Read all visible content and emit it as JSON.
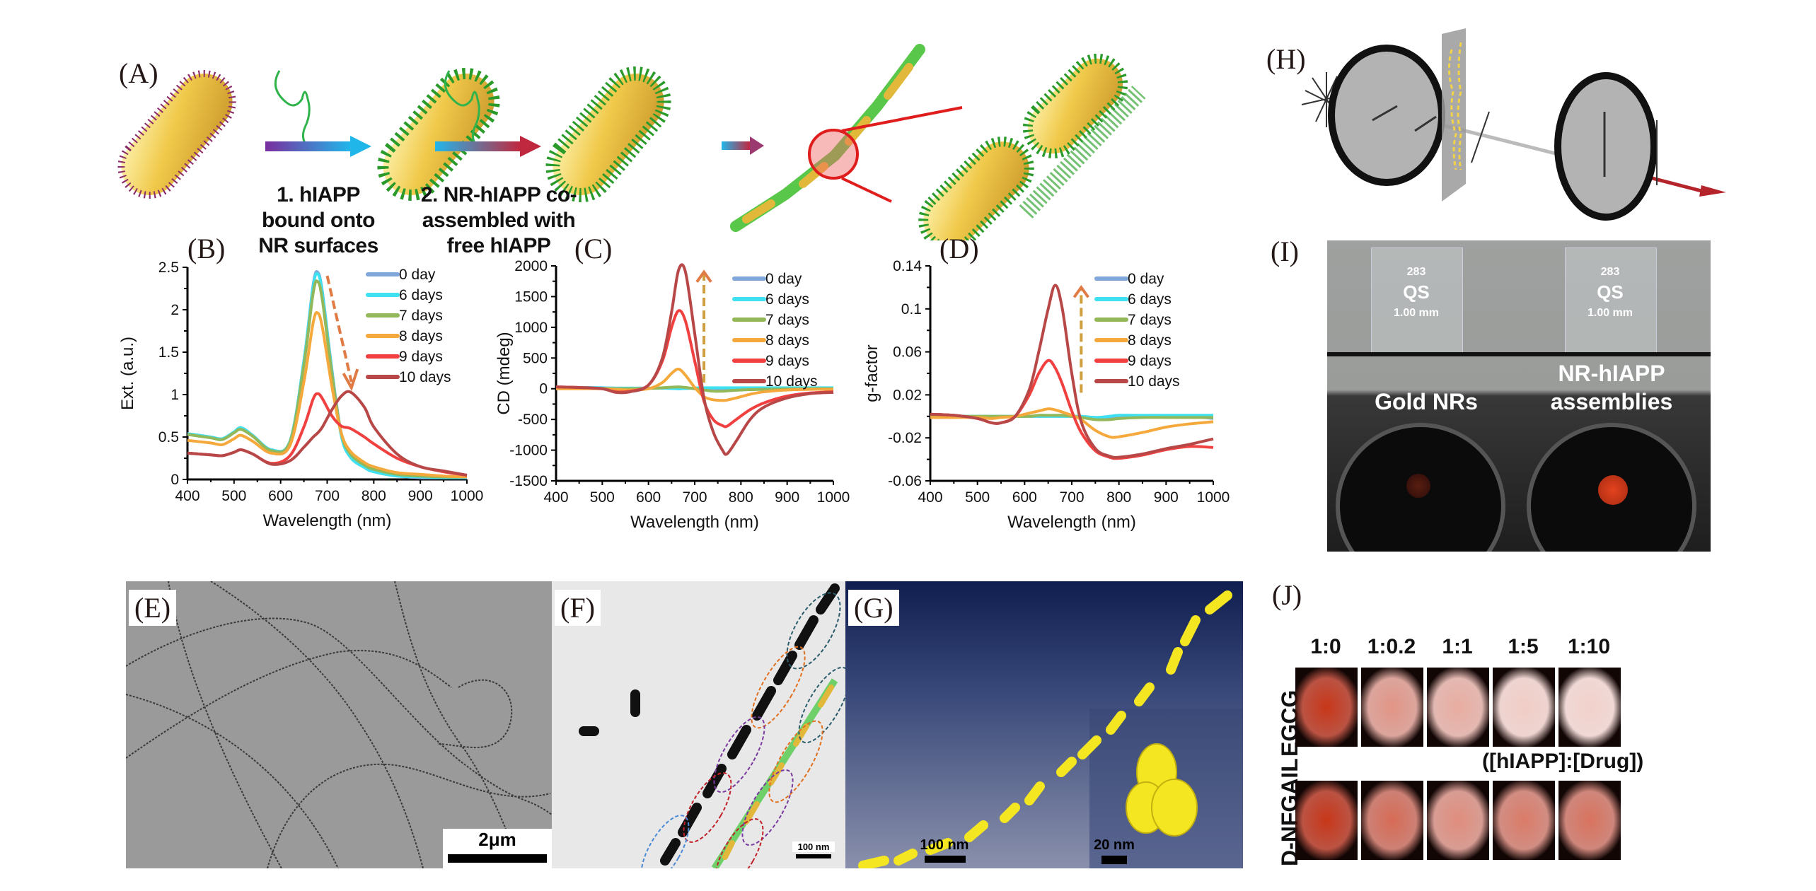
{
  "panels": {
    "A": {
      "label": "(A)",
      "step1": [
        "1. hIAPP",
        "bound onto",
        "NR surfaces"
      ],
      "step2": [
        "2. NR-hIAPP co-",
        "assembled with",
        "free hIAPP"
      ]
    },
    "B": {
      "label": "(B)"
    },
    "C": {
      "label": "(C)"
    },
    "D": {
      "label": "(D)"
    },
    "E": {
      "label": "(E)",
      "scale_bar": "2μm"
    },
    "F": {
      "label": "(F)",
      "scale_bar": "100 nm"
    },
    "G": {
      "label": "(G)",
      "scale_bar": "100 nm",
      "inset_scale_bar": "20 nm"
    },
    "H": {
      "label": "(H)"
    },
    "I": {
      "label": "(I)",
      "cuvette_text": {
        "number": "283",
        "brand": "QS",
        "path": "1.00 mm"
      },
      "left_caption": "Gold NRs",
      "right_caption": [
        "NR-hIAPP",
        "assemblies"
      ]
    },
    "J": {
      "label": "(J)",
      "columns": [
        "1:0",
        "1:0.2",
        "1:1",
        "1:5",
        "1:10"
      ],
      "rows": [
        "EGCG",
        "D-NFGAIL"
      ],
      "ratio_caption": "([hIAPP]:[Drug])",
      "intensity": {
        "EGCG": [
          1.0,
          0.45,
          0.3,
          0.12,
          0.1
        ],
        "D-NFGAIL": [
          1.0,
          0.7,
          0.5,
          0.6,
          0.65
        ]
      }
    }
  },
  "colors": {
    "0 day": "#7fa7d9",
    "6 days": "#3fe0f0",
    "7 days": "#93b85a",
    "8 days": "#f5a93c",
    "9 days": "#f0403f",
    "10 days": "#b84848"
  },
  "chart_data": [
    {
      "id": "B",
      "type": "line",
      "title": "",
      "xlabel": "Wavelength (nm)",
      "ylabel": "Ext. (a.u.)",
      "xlim": [
        400,
        1000
      ],
      "ylim": [
        0,
        2.5
      ],
      "xticks": [
        400,
        500,
        600,
        700,
        800,
        900,
        1000
      ],
      "yticks": [
        0,
        0.5,
        1,
        1.5,
        2,
        2.5
      ],
      "ytick_labels": [
        "0",
        "0.5",
        "1",
        "1.5",
        "2",
        "2.5"
      ],
      "legend": "top-right",
      "annotation": "dashed arrow pointing down-right (red-shift and decrease)",
      "x": [
        400,
        450,
        475,
        500,
        515,
        540,
        580,
        620,
        650,
        670,
        680,
        690,
        710,
        730,
        750,
        780,
        800,
        850,
        900,
        950,
        1000
      ],
      "series": [
        {
          "name": "0 day",
          "values": [
            0.54,
            0.5,
            0.48,
            0.56,
            0.61,
            0.52,
            0.35,
            0.45,
            1.4,
            2.3,
            2.44,
            2.2,
            1.3,
            0.55,
            0.28,
            0.15,
            0.1,
            0.04,
            0.02,
            0.02,
            0.02
          ]
        },
        {
          "name": "6 days",
          "values": [
            0.54,
            0.5,
            0.48,
            0.56,
            0.61,
            0.52,
            0.35,
            0.45,
            1.4,
            2.28,
            2.42,
            2.18,
            1.28,
            0.52,
            0.26,
            0.14,
            0.09,
            0.04,
            0.03,
            0.02,
            0.02
          ]
        },
        {
          "name": "7 days",
          "values": [
            0.53,
            0.49,
            0.47,
            0.55,
            0.59,
            0.51,
            0.34,
            0.44,
            1.35,
            2.2,
            2.33,
            2.1,
            1.25,
            0.55,
            0.3,
            0.17,
            0.12,
            0.06,
            0.04,
            0.03,
            0.03
          ]
        },
        {
          "name": "8 days",
          "values": [
            0.46,
            0.43,
            0.41,
            0.48,
            0.52,
            0.45,
            0.31,
            0.4,
            1.15,
            1.85,
            1.96,
            1.78,
            1.1,
            0.55,
            0.33,
            0.2,
            0.15,
            0.08,
            0.06,
            0.04,
            0.03
          ]
        },
        {
          "name": "9 days",
          "values": [
            0.31,
            0.29,
            0.28,
            0.32,
            0.35,
            0.3,
            0.19,
            0.28,
            0.62,
            0.95,
            1.01,
            0.95,
            0.75,
            0.63,
            0.6,
            0.5,
            0.42,
            0.25,
            0.15,
            0.09,
            0.05
          ]
        },
        {
          "name": "10 days",
          "values": [
            0.31,
            0.29,
            0.28,
            0.32,
            0.35,
            0.3,
            0.18,
            0.22,
            0.38,
            0.5,
            0.55,
            0.62,
            0.82,
            0.98,
            1.03,
            0.85,
            0.62,
            0.3,
            0.15,
            0.1,
            0.05
          ]
        }
      ]
    },
    {
      "id": "C",
      "type": "line",
      "title": "",
      "xlabel": "Wavelength (nm)",
      "ylabel": "CD (mdeg)",
      "xlim": [
        400,
        1000
      ],
      "ylim": [
        -1500,
        2000
      ],
      "xticks": [
        400,
        500,
        600,
        700,
        800,
        900,
        1000
      ],
      "yticks": [
        -1500,
        -1000,
        -500,
        0,
        500,
        1000,
        1500,
        2000
      ],
      "ytick_labels": [
        "-1500",
        "-1000",
        "-500",
        "0",
        "500",
        "1000",
        "1500",
        "2000"
      ],
      "legend": "top-right",
      "annotation": "dashed arrow pointing up (increasing CD signal)",
      "x": [
        400,
        450,
        500,
        530,
        560,
        600,
        630,
        650,
        665,
        680,
        700,
        720,
        740,
        760,
        770,
        790,
        820,
        850,
        900,
        950,
        1000
      ],
      "series": [
        {
          "name": "0 day",
          "values": [
            20,
            20,
            15,
            10,
            10,
            10,
            10,
            5,
            0,
            5,
            10,
            10,
            5,
            0,
            0,
            5,
            5,
            10,
            10,
            10,
            10
          ]
        },
        {
          "name": "6 days",
          "values": [
            20,
            20,
            15,
            10,
            10,
            10,
            10,
            5,
            0,
            5,
            10,
            15,
            15,
            15,
            15,
            15,
            15,
            15,
            15,
            15,
            15
          ]
        },
        {
          "name": "7 days",
          "values": [
            10,
            10,
            5,
            0,
            0,
            5,
            15,
            25,
            30,
            20,
            0,
            -20,
            -40,
            -40,
            -35,
            -25,
            -15,
            -10,
            -5,
            0,
            0
          ]
        },
        {
          "name": "8 days",
          "values": [
            0,
            0,
            0,
            -10,
            -20,
            0,
            100,
            250,
            320,
            220,
            20,
            -130,
            -180,
            -190,
            -185,
            -150,
            -90,
            -50,
            -20,
            -10,
            -10
          ]
        },
        {
          "name": "9 days",
          "values": [
            30,
            20,
            0,
            -50,
            -40,
            60,
            450,
            1000,
            1270,
            1100,
            450,
            -200,
            -500,
            -600,
            -610,
            -500,
            -340,
            -230,
            -120,
            -70,
            -50
          ]
        },
        {
          "name": "10 days",
          "values": [
            30,
            20,
            0,
            -60,
            -50,
            60,
            500,
            1250,
            1930,
            1900,
            900,
            -150,
            -700,
            -1000,
            -1060,
            -850,
            -500,
            -300,
            -150,
            -80,
            -60
          ]
        }
      ]
    },
    {
      "id": "D",
      "type": "line",
      "title": "",
      "xlabel": "Wavelength (nm)",
      "ylabel": "g-factor",
      "xlim": [
        400,
        1000
      ],
      "ylim": [
        -0.06,
        0.14
      ],
      "xticks": [
        400,
        500,
        600,
        700,
        800,
        900,
        1000
      ],
      "yticks": [
        -0.06,
        -0.02,
        0.02,
        0.06,
        0.1,
        0.14
      ],
      "ytick_labels": [
        "-0.06",
        "-0.02",
        "0.02",
        "0.06",
        "0.1",
        "0.14"
      ],
      "legend": "top-right",
      "annotation": "dashed arrow pointing up (increasing g-factor)",
      "x": [
        400,
        450,
        500,
        530,
        550,
        580,
        610,
        630,
        650,
        665,
        680,
        700,
        720,
        750,
        780,
        800,
        850,
        900,
        950,
        1000
      ],
      "series": [
        {
          "name": "0 day",
          "values": [
            0,
            0,
            0,
            0,
            0,
            0,
            0,
            0,
            0,
            0,
            0,
            0,
            0,
            -0.001,
            -0.001,
            0,
            0,
            0,
            0,
            -0.002
          ]
        },
        {
          "name": "6 days",
          "values": [
            0,
            0,
            0,
            0,
            0,
            0,
            0,
            0,
            0,
            0,
            0,
            0,
            0,
            -0.001,
            0,
            0.001,
            0.001,
            0.001,
            0.001,
            0.001
          ]
        },
        {
          "name": "7 days",
          "values": [
            0,
            0,
            0,
            0,
            0,
            0,
            0,
            0.001,
            0.001,
            0.001,
            0.001,
            0,
            -0.001,
            -0.003,
            -0.003,
            -0.002,
            -0.001,
            -0.001,
            -0.001,
            -0.001
          ]
        },
        {
          "name": "8 days",
          "values": [
            -0.001,
            -0.001,
            -0.001,
            -0.002,
            -0.001,
            0,
            0.003,
            0.005,
            0.007,
            0.006,
            0.004,
            0.001,
            -0.003,
            -0.013,
            -0.019,
            -0.019,
            -0.015,
            -0.01,
            -0.007,
            -0.005
          ]
        },
        {
          "name": "9 days",
          "values": [
            0.002,
            0.001,
            -0.002,
            -0.006,
            -0.006,
            0,
            0.02,
            0.04,
            0.052,
            0.045,
            0.03,
            0.005,
            -0.015,
            -0.032,
            -0.038,
            -0.039,
            -0.036,
            -0.031,
            -0.028,
            -0.029
          ]
        },
        {
          "name": "10 days",
          "values": [
            0.002,
            0.001,
            -0.002,
            -0.006,
            -0.006,
            0,
            0.025,
            0.06,
            0.1,
            0.122,
            0.1,
            0.04,
            -0.005,
            -0.03,
            -0.037,
            -0.038,
            -0.035,
            -0.03,
            -0.026,
            -0.021
          ]
        }
      ]
    }
  ]
}
